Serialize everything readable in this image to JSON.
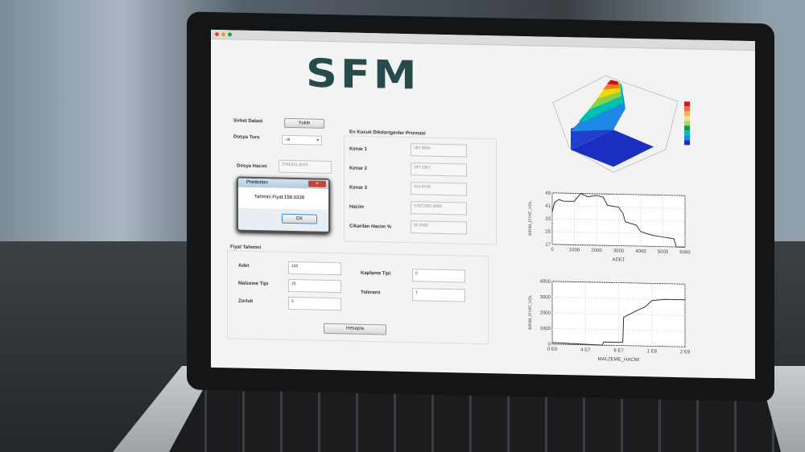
{
  "app": {
    "logo": "SFM"
  },
  "form": {
    "sirket_datasi": {
      "label": "Sirket Datasi",
      "button": "Yukle"
    },
    "dosya_turu": {
      "label": "Dosya Turu",
      "value": ".stl"
    },
    "dosya_hacmi": {
      "label": "Dosya Hacmi",
      "value": "274E321.8473"
    }
  },
  "prizma": {
    "title": "En Kucuk Dikdortgenler Prizmasi",
    "rows": [
      {
        "label": "Kenar 1",
        "value": "287.9684"
      },
      {
        "label": "Kenar 2",
        "value": "197.2307"
      },
      {
        "label": "Kenar 3",
        "value": "314.6740"
      },
      {
        "label": "Hacim",
        "value": "17872302.0000"
      },
      {
        "label": "Cikarilan Hacim %",
        "value": "84.6392"
      }
    ]
  },
  "dialog": {
    "title": "Prediction",
    "message": "Tahmini Fiyat 158.0338",
    "ok": "OK"
  },
  "fiyat": {
    "title": "Fiyat Tahmini",
    "left": [
      {
        "label": "Adet",
        "value": "100"
      },
      {
        "label": "Malzeme Tipi",
        "value": "20"
      },
      {
        "label": "Zorluk",
        "value": "5"
      }
    ],
    "right": [
      {
        "label": "Kaplama Tipi",
        "value": "0"
      },
      {
        "label": "Tolerans",
        "value": "7"
      }
    ],
    "button": "Hesapla"
  },
  "colors": {
    "logo": "#264b4a",
    "surface_peak": "#cc1a10",
    "surface_base": "#1a2fc0"
  },
  "chart_data": [
    {
      "type": "surface",
      "title": "",
      "colorbar": [
        "#d7191c",
        "#f46d43",
        "#fdae61",
        "#fee08b",
        "#a6d96a",
        "#1a9641",
        "#00bcd4",
        "#1e88e5",
        "#1a2fc0"
      ]
    },
    {
      "type": "line",
      "xlabel": "ADET",
      "ylabel": "BIRIM_FIYAT_VOL",
      "xlim": [
        0,
        6000
      ],
      "ylim": [
        17,
        49
      ],
      "xticks": [
        0,
        1000,
        2000,
        3000,
        4000,
        5000,
        6000
      ],
      "yticks": [
        17,
        25,
        33,
        41,
        49
      ],
      "grid": true,
      "x": [
        0,
        100,
        300,
        500,
        1000,
        1100,
        1300,
        1600,
        2000,
        2300,
        2500,
        3000,
        3200,
        3300,
        3800,
        4000,
        4500,
        5000,
        5500,
        5600,
        6000
      ],
      "y": [
        37,
        43,
        45,
        44,
        44,
        46,
        49,
        47,
        48,
        47,
        42,
        41,
        37,
        32,
        30,
        26,
        24,
        23,
        22,
        17,
        17
      ]
    },
    {
      "type": "line",
      "xlabel": "MALZEME_HACMI",
      "ylabel": "BIRIM_FIYAT_VOL",
      "xlim": [
        0,
        160000000
      ],
      "ylim": [
        0,
        4000
      ],
      "xticks": [
        0,
        40000000,
        80000000,
        120000000,
        160000000
      ],
      "xticklabels": [
        "0 E0",
        "4 E7",
        "8 E7",
        "1 E8",
        "2 E8"
      ],
      "yticks": [
        0,
        1000,
        2000,
        3000,
        4000
      ],
      "grid": true,
      "x": [
        0,
        60000000,
        62000000,
        85000000,
        86000000,
        100000000,
        112000000,
        120000000,
        135000000,
        160000000
      ],
      "y": [
        100,
        0,
        200,
        200,
        1800,
        2200,
        2500,
        2900,
        3000,
        3000
      ]
    }
  ]
}
